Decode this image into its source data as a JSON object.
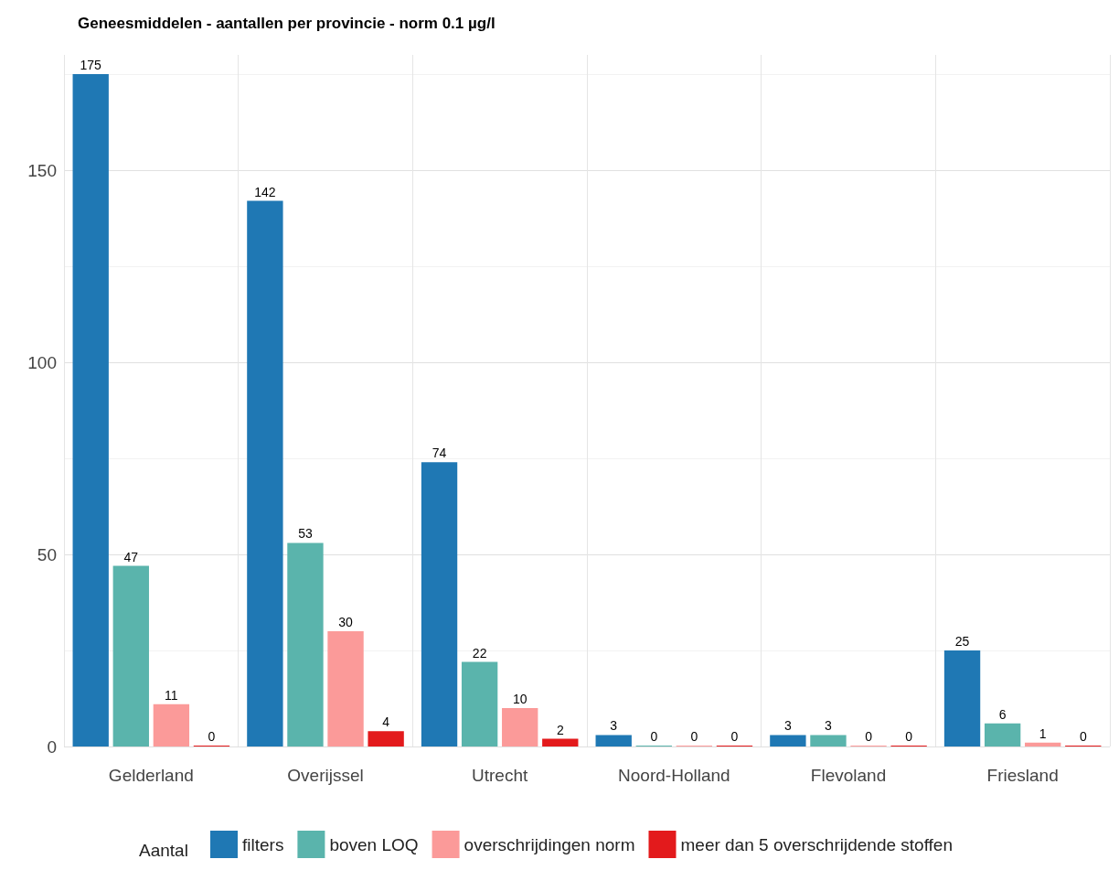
{
  "chart_data": {
    "type": "bar",
    "title": "Geneesmiddelen - aantallen per provincie - norm 0.1 µg/l",
    "categories": [
      "Gelderland",
      "Overijssel",
      "Utrecht",
      "Noord-Holland",
      "Flevoland",
      "Friesland"
    ],
    "series": [
      {
        "name": "filters",
        "color": "#1f78b4",
        "values": [
          175,
          142,
          74,
          3,
          3,
          25
        ]
      },
      {
        "name": "boven LOQ",
        "color": "#5ab4ac",
        "values": [
          47,
          53,
          22,
          0,
          3,
          6
        ]
      },
      {
        "name": "overschrijdingen norm",
        "color": "#fb9a99",
        "values": [
          11,
          30,
          10,
          0,
          0,
          1
        ]
      },
      {
        "name": "meer dan 5 overschrijdende stoffen",
        "color": "#e31a1c",
        "values": [
          0,
          4,
          2,
          0,
          0,
          0
        ]
      }
    ],
    "legend_title": "Aantal",
    "legend": "bottom",
    "data_labels": true,
    "grid": true,
    "ylim": [
      0,
      180
    ],
    "yticks": [
      0,
      50,
      100,
      150
    ]
  }
}
